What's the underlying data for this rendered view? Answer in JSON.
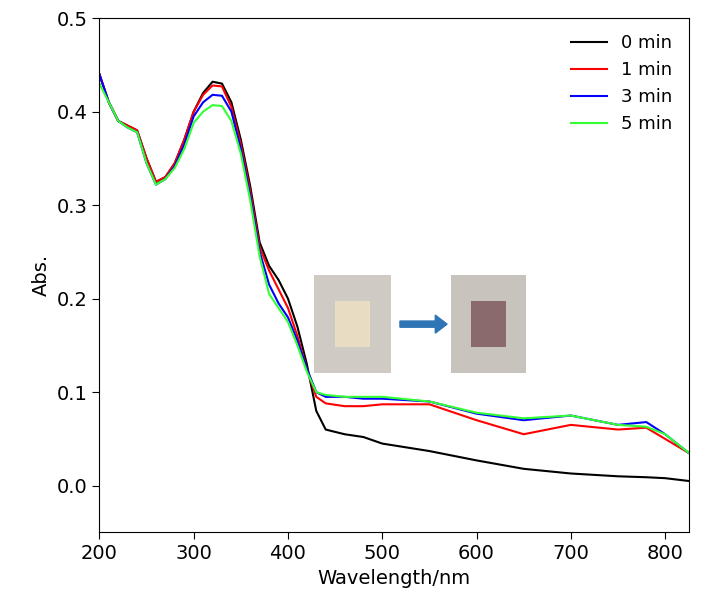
{
  "chart_data": {
    "type": "line",
    "x_label": "Wavelength/nm",
    "y_label": "Abs.",
    "x": [
      200,
      210,
      220,
      230,
      240,
      250,
      260,
      270,
      280,
      290,
      300,
      310,
      320,
      330,
      340,
      350,
      360,
      370,
      380,
      390,
      400,
      410,
      420,
      430,
      440,
      460,
      480,
      500,
      550,
      600,
      650,
      700,
      750,
      780,
      800,
      825
    ],
    "series": [
      {
        "name": "0 min",
        "color": "#000000",
        "values": [
          0.44,
          0.41,
          0.39,
          0.385,
          0.38,
          0.35,
          0.325,
          0.33,
          0.345,
          0.37,
          0.4,
          0.42,
          0.432,
          0.43,
          0.41,
          0.37,
          0.32,
          0.26,
          0.235,
          0.22,
          0.2,
          0.17,
          0.13,
          0.08,
          0.06,
          0.055,
          0.052,
          0.045,
          0.037,
          0.027,
          0.018,
          0.013,
          0.01,
          0.009,
          0.008,
          0.005
        ]
      },
      {
        "name": "1 min",
        "color": "#ff0000",
        "values": [
          0.44,
          0.41,
          0.39,
          0.385,
          0.38,
          0.35,
          0.325,
          0.33,
          0.345,
          0.37,
          0.4,
          0.418,
          0.428,
          0.427,
          0.405,
          0.365,
          0.315,
          0.255,
          0.23,
          0.21,
          0.19,
          0.16,
          0.125,
          0.095,
          0.088,
          0.085,
          0.085,
          0.087,
          0.087,
          0.07,
          0.055,
          0.065,
          0.06,
          0.062,
          0.05,
          0.035
        ]
      },
      {
        "name": "3 min",
        "color": "#0000ff",
        "values": [
          0.44,
          0.41,
          0.39,
          0.383,
          0.378,
          0.345,
          0.322,
          0.328,
          0.342,
          0.365,
          0.395,
          0.41,
          0.418,
          0.417,
          0.4,
          0.36,
          0.31,
          0.25,
          0.215,
          0.195,
          0.18,
          0.155,
          0.125,
          0.1,
          0.095,
          0.095,
          0.093,
          0.093,
          0.09,
          0.077,
          0.07,
          0.075,
          0.065,
          0.068,
          0.055,
          0.035
        ]
      },
      {
        "name": "5 min",
        "color": "#33ff33",
        "values": [
          0.43,
          0.41,
          0.39,
          0.383,
          0.378,
          0.345,
          0.322,
          0.328,
          0.34,
          0.36,
          0.388,
          0.4,
          0.407,
          0.406,
          0.39,
          0.355,
          0.305,
          0.245,
          0.205,
          0.19,
          0.175,
          0.15,
          0.122,
          0.1,
          0.097,
          0.095,
          0.095,
          0.095,
          0.09,
          0.078,
          0.072,
          0.075,
          0.065,
          0.063,
          0.055,
          0.035
        ]
      }
    ],
    "xlim": [
      200,
      825
    ],
    "xticks": [
      200,
      300,
      400,
      500,
      600,
      700,
      800
    ],
    "ylim": [
      -0.05,
      0.5
    ],
    "yticks": [
      0.0,
      0.1,
      0.2,
      0.3,
      0.4,
      0.5
    ],
    "legend": "upper right"
  }
}
